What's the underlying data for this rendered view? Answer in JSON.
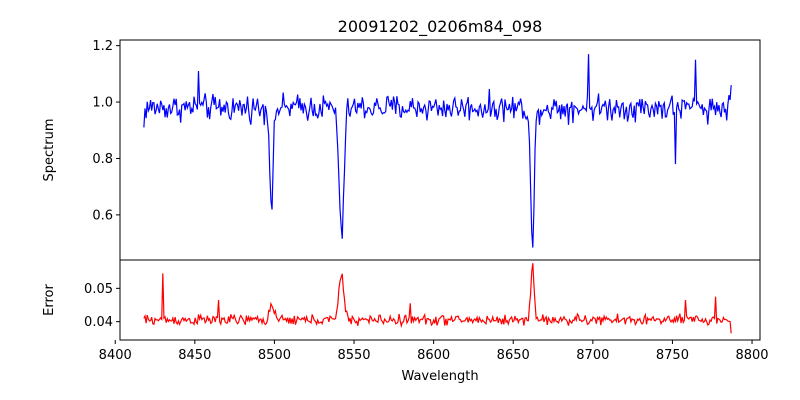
{
  "chart_data": {
    "type": "line",
    "title": "20091202_0206m84_098",
    "xlabel": "Wavelength",
    "xlim": [
      8403,
      8805
    ],
    "xticks": [
      8400,
      8450,
      8500,
      8550,
      8600,
      8650,
      8700,
      8750,
      8800
    ],
    "x_range": [
      8418,
      8787
    ],
    "panels": [
      {
        "name": "spectrum",
        "ylabel": "Spectrum",
        "ylim": [
          0.44,
          1.22
        ],
        "yticks": [
          0.6,
          0.8,
          1.0,
          1.2
        ],
        "color": "#0000ff",
        "continuum": 0.98,
        "noise": 0.035,
        "start_value": 0.91,
        "end_value": 1.06,
        "features": [
          {
            "center": 8498.2,
            "depth": 0.34,
            "width": 1.1
          },
          {
            "center": 8542.1,
            "depth": 0.46,
            "width": 1.5
          },
          {
            "center": 8662.1,
            "depth": 0.51,
            "width": 1.1
          }
        ],
        "spikes": [
          {
            "x": 8697.5,
            "y": 1.17
          },
          {
            "x": 8764.5,
            "y": 1.15
          },
          {
            "x": 8452.0,
            "y": 1.11
          },
          {
            "x": 8752.0,
            "y": 0.78
          }
        ]
      },
      {
        "name": "error",
        "ylabel": "Error",
        "ylim": [
          0.0345,
          0.0585
        ],
        "yticks": [
          0.04,
          0.05
        ],
        "color": "#ff0000",
        "continuum": 0.0405,
        "noise": 0.0012,
        "start_value": 0.041,
        "end_value": 0.0365,
        "features": [
          {
            "center": 8542.1,
            "depth": -0.014,
            "width": 1.5
          },
          {
            "center": 8662.1,
            "depth": -0.016,
            "width": 1.1
          },
          {
            "center": 8498.2,
            "depth": -0.005,
            "width": 1.2
          }
        ],
        "spikes": [
          {
            "x": 8430.0,
            "y": 0.0545
          },
          {
            "x": 8465.0,
            "y": 0.0465
          },
          {
            "x": 8585.0,
            "y": 0.0455
          },
          {
            "x": 8777.0,
            "y": 0.0475
          },
          {
            "x": 8758.0,
            "y": 0.0465
          }
        ]
      }
    ]
  }
}
